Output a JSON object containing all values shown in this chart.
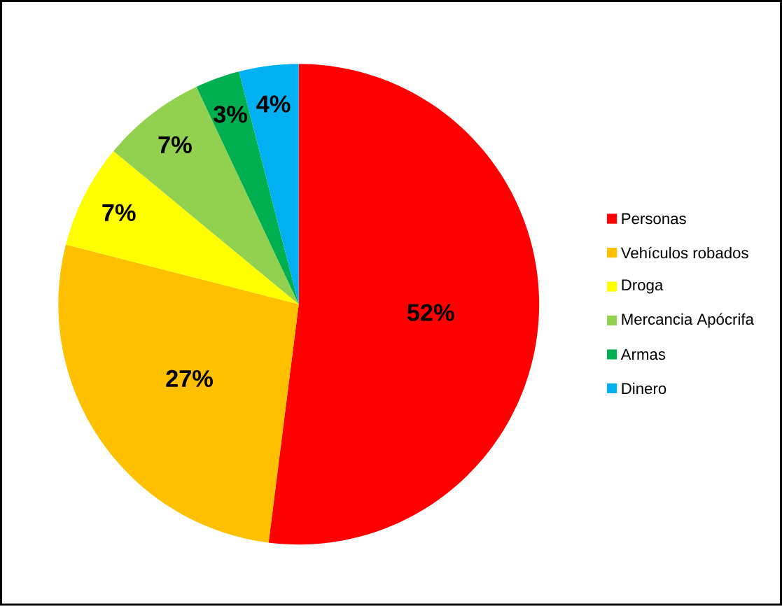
{
  "chart_data": {
    "type": "pie",
    "categories": [
      "Personas",
      "Vehículos robados",
      "Droga",
      "Mercancia Apócrifa",
      "Armas",
      "Dinero"
    ],
    "values": [
      52,
      27,
      7,
      7,
      3,
      4
    ],
    "colors": [
      "#ff0000",
      "#ffc000",
      "#ffff00",
      "#92d050",
      "#00b050",
      "#00b0f0"
    ],
    "value_labels": [
      "52%",
      "27%",
      "7%",
      "7%",
      "3%",
      "4%"
    ],
    "legend": "right"
  }
}
